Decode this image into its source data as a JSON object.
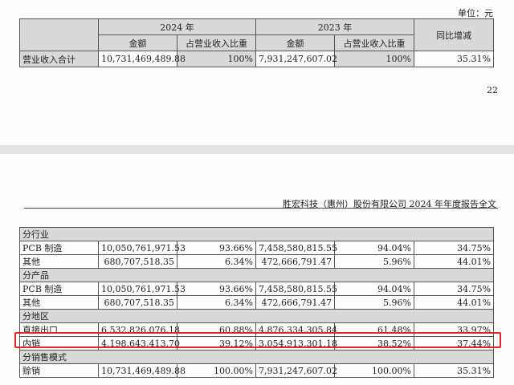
{
  "page1": {
    "unit_label": "单位：元",
    "page_number": "22",
    "table": {
      "year_2024": "2024 年",
      "year_2023": "2023 年",
      "yoy": "同比增减",
      "amount": "金额",
      "share": "占营业收入比重",
      "total_row": {
        "label": "营业收入合计",
        "amount_2024": "10,731,469,489.88",
        "share_2024": "100%",
        "amount_2023": "7,931,247,607.02",
        "share_2023": "100%",
        "yoy": "35.31%"
      }
    }
  },
  "page2": {
    "header": "胜宏科技（惠州）股份有限公司 2024 年年度报告全文",
    "highlight_color": "#e0262b",
    "sections": [
      {
        "title": "分行业",
        "rows": [
          {
            "label": "PCB 制造",
            "amount_2024": "10,050,761,971.53",
            "share_2024": "93.66%",
            "amount_2023": "7,458,580,815.55",
            "share_2023": "94.04%",
            "yoy": "34.75%"
          },
          {
            "label": "其他",
            "amount_2024": "680,707,518.35",
            "share_2024": "6.34%",
            "amount_2023": "472,666,791.47",
            "share_2023": "5.96%",
            "yoy": "44.01%"
          }
        ]
      },
      {
        "title": "分产品",
        "rows": [
          {
            "label": "PCB 制造",
            "amount_2024": "10,050,761,971.53",
            "share_2024": "93.66%",
            "amount_2023": "7,458,580,815.55",
            "share_2023": "94.04%",
            "yoy": "34.75%"
          },
          {
            "label": "其他",
            "amount_2024": "680,707,518.35",
            "share_2024": "6.34%",
            "amount_2023": "472,666,791.47",
            "share_2023": "5.96%",
            "yoy": "44.01%"
          }
        ]
      },
      {
        "title": "分地区",
        "rows": [
          {
            "label": "直接出口",
            "amount_2024": "6,532,826,076.18",
            "share_2024": "60.88%",
            "amount_2023": "4,876,334,305.84",
            "share_2023": "61.48%",
            "yoy": "33.97%"
          },
          {
            "label": "内销",
            "amount_2024": "4,198,643,413.70",
            "share_2024": "39.12%",
            "amount_2023": "3,054,913,301.18",
            "share_2023": "38.52%",
            "yoy": "37.44%"
          }
        ]
      },
      {
        "title": "分销售模式",
        "rows": [
          {
            "label": "赊销",
            "amount_2024": "10,731,469,489.88",
            "share_2024": "100.00%",
            "amount_2023": "7,931,247,607.02",
            "share_2023": "100.00%",
            "yoy": "35.31%"
          }
        ]
      }
    ]
  }
}
